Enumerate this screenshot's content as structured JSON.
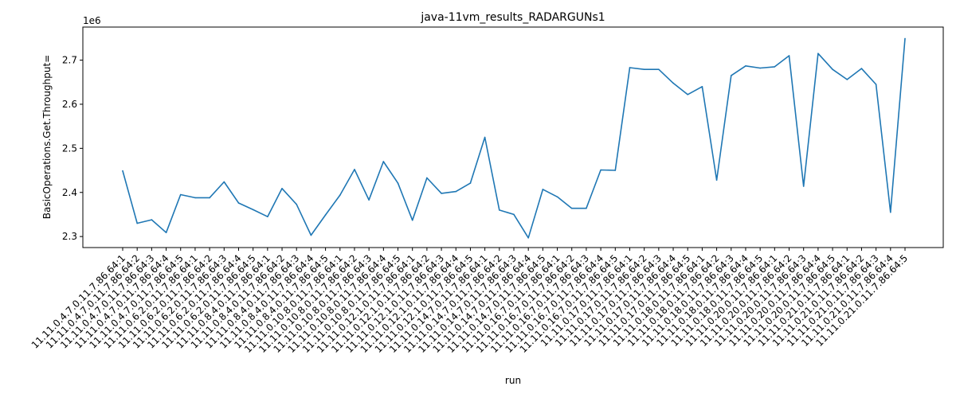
{
  "chart_data": {
    "type": "line",
    "title": "java-11vm_results_RADARGUNs1",
    "xlabel": "run",
    "ylabel": "BasicOperations.Get.Throughput=",
    "y_offset_label": "1e6",
    "ylim": [
      2.275,
      2.775
    ],
    "yticks": [
      2.3,
      2.4,
      2.5,
      2.6,
      2.7
    ],
    "ytick_labels": [
      "2.3",
      "2.4",
      "2.5",
      "2.6",
      "2.7"
    ],
    "grid": false,
    "colors": {
      "line": "#1f77b4"
    },
    "categories": [
      "11.11.0.4.7.0.11.7.86.64:1",
      "11.11.0.4.7.0.11.7.86.64:2",
      "11.11.0.4.7.0.11.7.86.64:3",
      "11.11.0.4.7.0.11.7.86.64:4",
      "11.11.0.4.7.0.11.7.86.64:5",
      "11.11.0.6.2.0.11.7.86.64:1",
      "11.11.0.6.2.0.11.7.86.64:2",
      "11.11.0.6.2.0.11.7.86.64:3",
      "11.11.0.6.2.0.11.7.86.64:4",
      "11.11.0.6.2.0.11.7.86.64:5",
      "11.11.0.8.4.0.11.7.86.64:1",
      "11.11.0.8.4.0.11.7.86.64:2",
      "11.11.0.8.4.0.11.7.86.64:3",
      "11.11.0.8.4.0.11.7.86.64:4",
      "11.11.0.8.4.0.11.7.86.64:5",
      "11.11.0.10.8.0.11.7.86.64:1",
      "11.11.0.10.8.0.11.7.86.64:2",
      "11.11.0.10.8.0.11.7.86.64:3",
      "11.11.0.10.8.0.11.7.86.64:4",
      "11.11.0.10.8.0.11.7.86.64:5",
      "11.11.0.12.1.0.11.7.86.64:1",
      "11.11.0.12.1.0.11.7.86.64:2",
      "11.11.0.12.1.0.11.7.86.64:3",
      "11.11.0.12.1.0.11.7.86.64:4",
      "11.11.0.12.1.0.11.7.86.64:5",
      "11.11.0.14.7.0.11.7.86.64:1",
      "11.11.0.14.7.0.11.7.86.64:2",
      "11.11.0.14.7.0.11.7.86.64:3",
      "11.11.0.14.7.0.11.7.86.64:4",
      "11.11.0.14.7.0.11.7.86.64:5",
      "11.11.0.16.7.0.11.7.86.64:1",
      "11.11.0.16.7.0.11.7.86.64:2",
      "11.11.0.16.7.0.11.7.86.64:3",
      "11.11.0.16.7.0.11.7.86.64:4",
      "11.11.0.16.7.0.11.7.86.64:5",
      "11.11.0.17.0.11.7.86.64:1",
      "11.11.0.17.0.11.7.86.64:2",
      "11.11.0.17.0.11.7.86.64:3",
      "11.11.0.17.0.11.7.86.64:4",
      "11.11.0.17.0.11.7.86.64:5",
      "11.11.0.18.0.11.7.86.64:1",
      "11.11.0.18.0.11.7.86.64:2",
      "11.11.0.18.0.11.7.86.64:3",
      "11.11.0.18.0.11.7.86.64:4",
      "11.11.0.18.0.11.7.86.64:5",
      "11.11.0.20.0.11.7.86.64:1",
      "11.11.0.20.0.11.7.86.64:2",
      "11.11.0.20.0.11.7.86.64:3",
      "11.11.0.20.0.11.7.86.64:4",
      "11.11.0.20.0.11.7.86.64:5",
      "11.11.0.21.0.11.7.86.64:1",
      "11.11.0.21.0.11.7.86.64:2",
      "11.11.0.21.0.11.7.86.64:3",
      "11.11.0.21.0.11.7.86.64:4",
      "11.11.0.21.0.11.7.86.64:5"
    ],
    "series": [
      {
        "values": [
          2.449,
          2.33,
          2.338,
          2.309,
          2.395,
          2.388,
          2.388,
          2.424,
          2.376,
          2.361,
          2.345,
          2.409,
          2.373,
          2.303,
          2.349,
          2.394,
          2.452,
          2.383,
          2.47,
          2.421,
          2.337,
          2.433,
          2.398,
          2.402,
          2.421,
          2.525,
          2.36,
          2.35,
          2.297,
          2.407,
          2.39,
          2.364,
          2.364,
          2.451,
          2.45,
          2.683,
          2.679,
          2.679,
          2.648,
          2.622,
          2.64,
          2.428,
          2.665,
          2.687,
          2.682,
          2.685,
          2.71,
          2.414,
          2.715,
          2.679,
          2.656,
          2.681,
          2.645,
          2.355,
          2.749
        ]
      }
    ]
  }
}
